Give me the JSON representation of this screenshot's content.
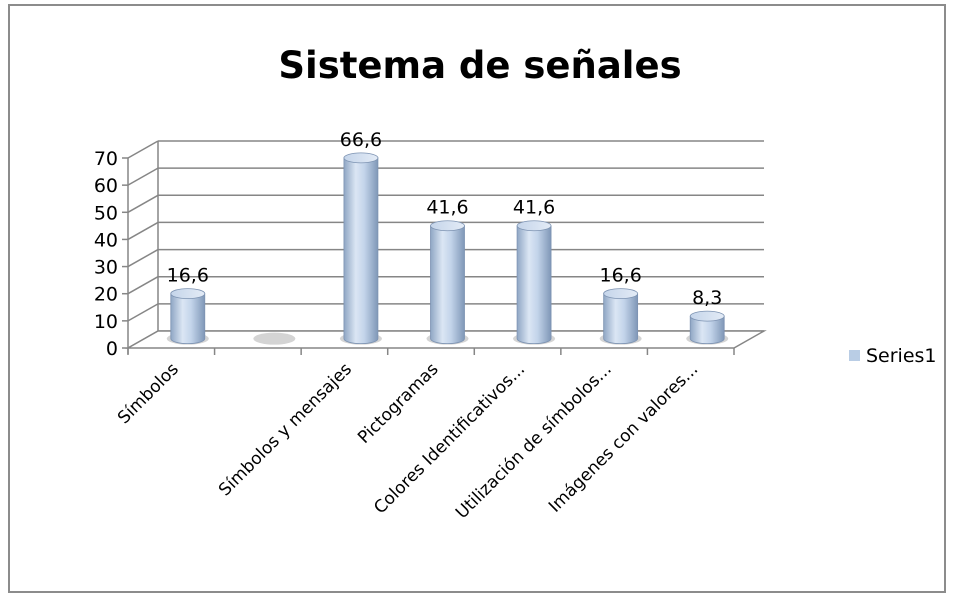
{
  "chart_data": {
    "type": "bar",
    "title": "Sistema de señales",
    "categories": [
      "Símbolos",
      "",
      "Símbolos y mensajes",
      "Pictogramas",
      "Colores Identificativos...",
      "Utilización de símbolos...",
      "Imágenes con valores..."
    ],
    "series": [
      {
        "name": "Series1",
        "values": [
          16.6,
          null,
          66.6,
          41.6,
          41.6,
          16.6,
          8.3
        ],
        "labels": [
          "16,6",
          "",
          "66,6",
          "41,6",
          "41,6",
          "16,6",
          "8,3"
        ],
        "color": "#b9cde5"
      }
    ],
    "yticks": [
      "0",
      "10",
      "20",
      "30",
      "40",
      "50",
      "60",
      "70"
    ],
    "ylim": [
      0,
      70
    ],
    "xlabel": "",
    "ylabel": "",
    "grid": true,
    "legend": "right",
    "style": "3d-cylinder"
  }
}
